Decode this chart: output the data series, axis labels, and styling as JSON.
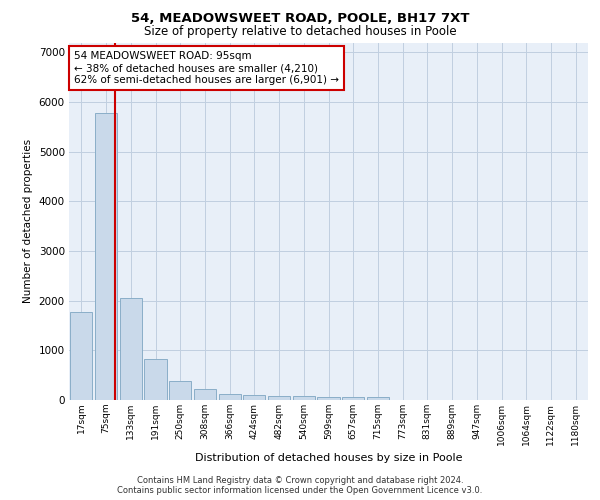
{
  "title1": "54, MEADOWSWEET ROAD, POOLE, BH17 7XT",
  "title2": "Size of property relative to detached houses in Poole",
  "xlabel": "Distribution of detached houses by size in Poole",
  "ylabel": "Number of detached properties",
  "categories": [
    "17sqm",
    "75sqm",
    "133sqm",
    "191sqm",
    "250sqm",
    "308sqm",
    "366sqm",
    "424sqm",
    "482sqm",
    "540sqm",
    "599sqm",
    "657sqm",
    "715sqm",
    "773sqm",
    "831sqm",
    "889sqm",
    "947sqm",
    "1006sqm",
    "1064sqm",
    "1122sqm",
    "1180sqm"
  ],
  "values": [
    1780,
    5780,
    2060,
    820,
    380,
    230,
    120,
    110,
    75,
    80,
    65,
    70,
    60,
    0,
    0,
    0,
    0,
    0,
    0,
    0,
    0
  ],
  "bar_color": "#c9d9ea",
  "bar_edge_color": "#8aaec8",
  "bar_linewidth": 0.7,
  "grid_color": "#c0cfe0",
  "plot_bg_color": "#e8eff8",
  "red_line_color": "#cc0000",
  "annotation_text": "54 MEADOWSWEET ROAD: 95sqm\n← 38% of detached houses are smaller (4,210)\n62% of semi-detached houses are larger (6,901) →",
  "annotation_box_facecolor": "white",
  "annotation_box_edge": "#cc0000",
  "ylim": [
    0,
    7200
  ],
  "yticks": [
    0,
    1000,
    2000,
    3000,
    4000,
    5000,
    6000,
    7000
  ],
  "footnote1": "Contains HM Land Registry data © Crown copyright and database right 2024.",
  "footnote2": "Contains public sector information licensed under the Open Government Licence v3.0."
}
